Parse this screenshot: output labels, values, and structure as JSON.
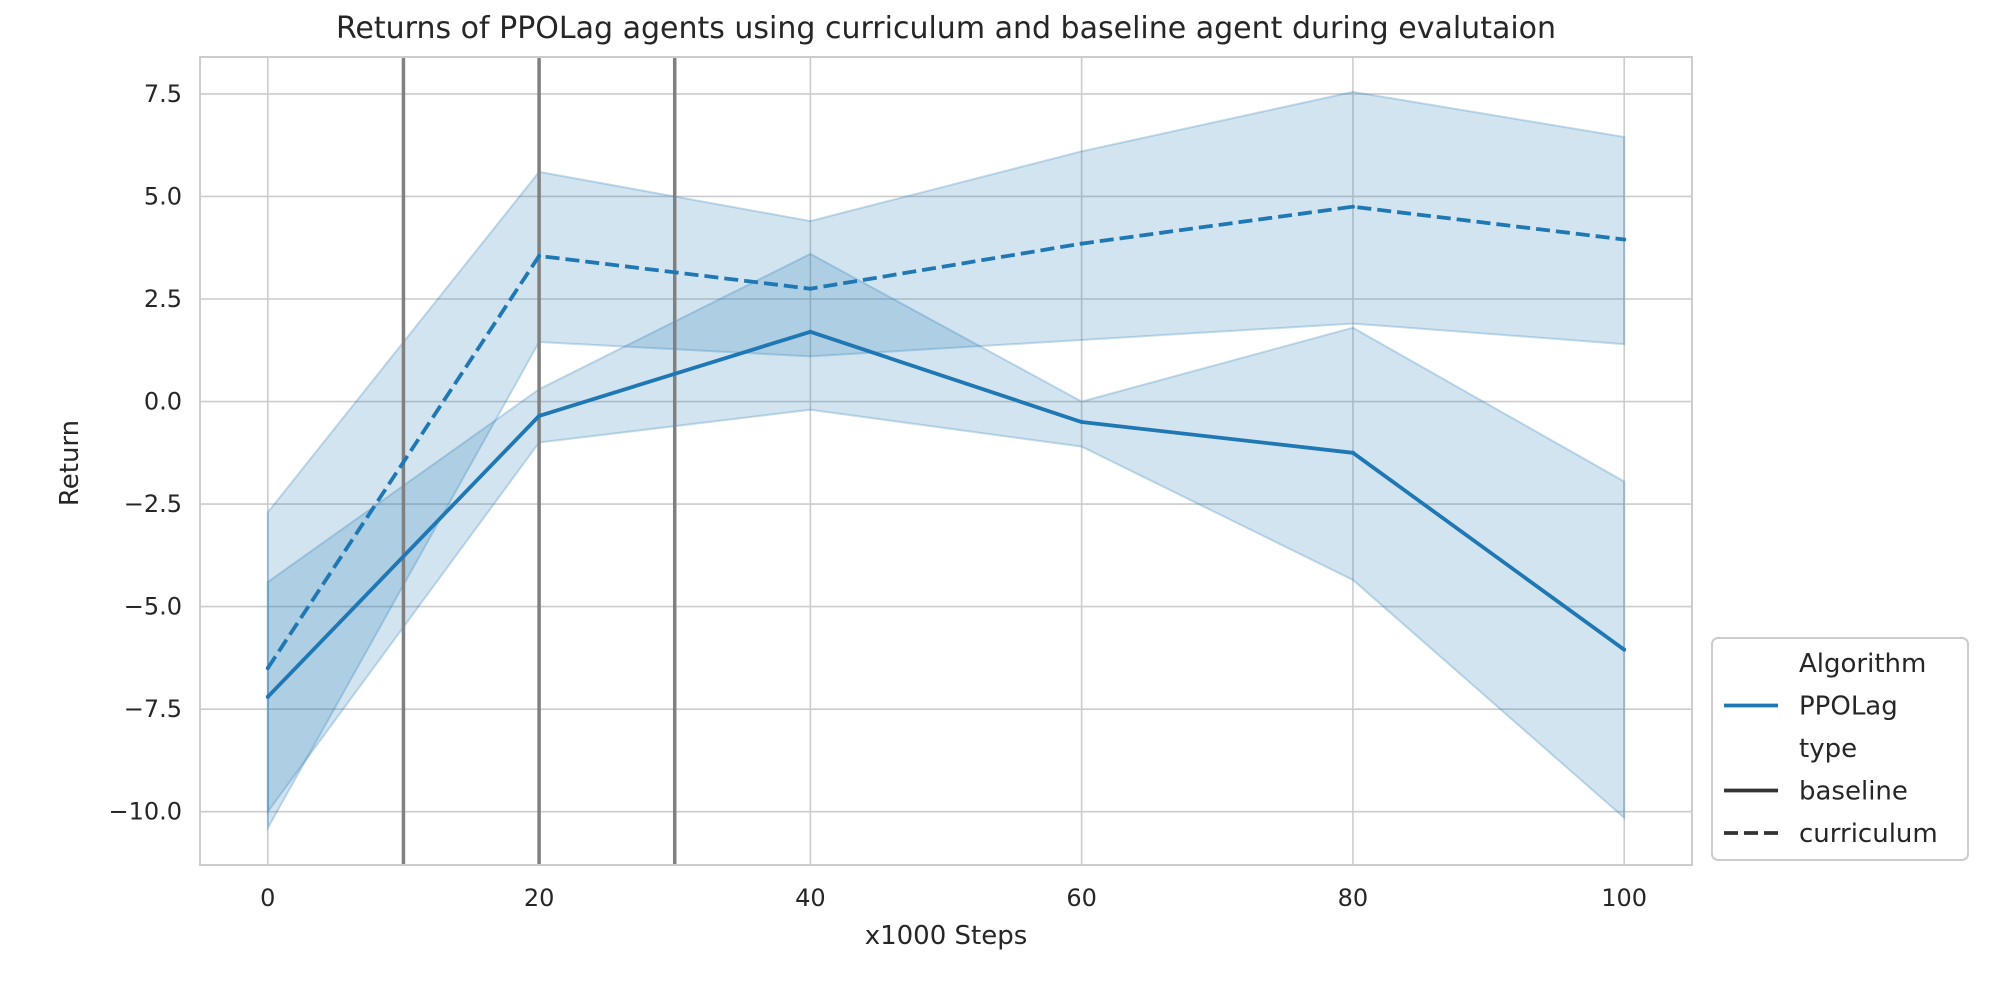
{
  "chart_data": {
    "type": "line",
    "title": "Returns of PPOLag agents using curriculum and baseline agent during evalutaion",
    "xlabel": "x1000 Steps",
    "ylabel": "Return",
    "xlim": [
      -5,
      105
    ],
    "ylim": [
      -11.3,
      8.4
    ],
    "xticks": [
      0,
      20,
      40,
      60,
      80,
      100
    ],
    "xtick_labels": [
      "0",
      "20",
      "40",
      "60",
      "80",
      "100"
    ],
    "yticks": [
      -10,
      -7.5,
      -5,
      -2.5,
      0,
      2.5,
      5,
      7.5
    ],
    "ytick_labels": [
      "−10.0",
      "−7.5",
      "−5.0",
      "−2.5",
      "0.0",
      "2.5",
      "5.0",
      "7.5"
    ],
    "grid": true,
    "vertical_lines": [
      10,
      20,
      30
    ],
    "series": [
      {
        "name": "baseline",
        "style": "solid",
        "color": "#1f77b4",
        "x": [
          0,
          20,
          40,
          60,
          80,
          100
        ],
        "y": [
          -7.2,
          -0.35,
          1.7,
          -0.5,
          -1.25,
          -6.05
        ],
        "ci_low": [
          -10.0,
          -1.0,
          -0.2,
          -1.1,
          -4.35,
          -10.15
        ],
        "ci_high": [
          -4.4,
          0.3,
          3.6,
          0.0,
          1.8,
          -1.95
        ]
      },
      {
        "name": "curriculum",
        "style": "dashed",
        "color": "#1f77b4",
        "x": [
          0,
          20,
          40,
          60,
          80,
          100
        ],
        "y": [
          -6.5,
          3.55,
          2.75,
          3.85,
          4.75,
          3.95
        ],
        "ci_low": [
          -10.4,
          1.45,
          1.1,
          1.5,
          1.9,
          1.4
        ],
        "ci_high": [
          -2.7,
          5.6,
          4.4,
          6.1,
          7.55,
          6.45
        ]
      }
    ],
    "legend": {
      "position": "lower-right",
      "entries": [
        {
          "label": "Algorithm",
          "kind": "header"
        },
        {
          "label": "PPOLag",
          "kind": "line",
          "style": "solid",
          "color": "#1f77b4"
        },
        {
          "label": "type",
          "kind": "header"
        },
        {
          "label": "baseline",
          "kind": "line",
          "style": "solid",
          "color": "#333333"
        },
        {
          "label": "curriculum",
          "kind": "line",
          "style": "dashed",
          "color": "#333333"
        }
      ]
    }
  }
}
